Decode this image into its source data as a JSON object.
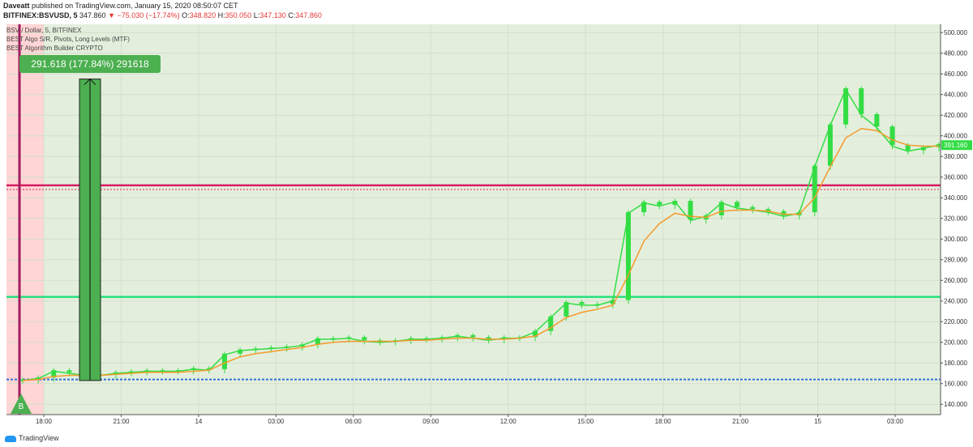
{
  "header": {
    "author": "Daveatt",
    "published_text": "published on TradingView.com, January 15, 2020 08:50:07 CET",
    "symbol": "BITFINEX:BSVUSD, 5",
    "last": "347.860",
    "change": "▼ −75.030 (−17.74%)",
    "o_label": "O:",
    "o_value": "348.820",
    "h_label": "H:",
    "h_value": "350.050",
    "l_label": "L:",
    "l_value": "347.130",
    "c_label": "C:",
    "c_value": "347.860"
  },
  "legend": {
    "line1": "BSV / Dollar, 5, BITFINEX",
    "line2": "BEST Algo S/R, Pivots, Long Levels (MTF)",
    "line3": "BEST Algorithm Builder CRYPTO"
  },
  "measure_badge": "291.618 (177.84%) 291618",
  "price_tag": "391.160",
  "buy_marker": "B",
  "footer": {
    "brand": "TradingView"
  },
  "colors": {
    "bg_green": "#e3efdc",
    "bg_red": "#ffd5d5",
    "candle_up": "#33dd44",
    "ema": "#f59a2c",
    "support": "#26e07a",
    "resistance": "#d81b60",
    "entry": "#2f6fd8",
    "measure": "#4caf50"
  },
  "chart_data": {
    "type": "line",
    "x_ticks": [
      "18:00",
      "21:00",
      "14",
      "03:00",
      "06:00",
      "09:00",
      "12:00",
      "15:00",
      "18:00",
      "21:00",
      "15",
      "03:00"
    ],
    "y_ticks": [
      "140.000",
      "160.000",
      "180.000",
      "200.000",
      "220.000",
      "240.000",
      "260.000",
      "280.000",
      "300.000",
      "320.000",
      "340.000",
      "360.000",
      "380.000",
      "400.000",
      "420.000",
      "440.000",
      "460.000",
      "480.000",
      "500.000"
    ],
    "ylim": [
      130,
      508
    ],
    "series": [
      {
        "x": [
          0,
          1,
          2,
          3,
          4,
          5,
          6,
          7,
          8,
          9,
          10,
          11,
          12,
          13,
          14,
          15,
          16,
          17,
          18,
          19,
          20,
          21,
          22,
          23,
          24,
          25,
          26,
          27,
          28,
          29,
          30,
          31,
          32,
          33,
          34,
          35,
          36,
          37,
          38,
          39,
          40,
          41,
          42,
          43,
          44,
          45,
          46,
          47,
          48,
          49,
          50,
          51,
          52,
          53,
          54,
          55,
          56,
          57,
          58,
          59
        ],
        "values": [
          163,
          165,
          172,
          170,
          168,
          168,
          170,
          171,
          172,
          172,
          172,
          174,
          173,
          188,
          192,
          193,
          194,
          195,
          197,
          203,
          203,
          204,
          201,
          200,
          201,
          203,
          203,
          204,
          206,
          204,
          202,
          204,
          204,
          210,
          224,
          238,
          236,
          236,
          240,
          325,
          335,
          332,
          336,
          318,
          322,
          335,
          330,
          328,
          326,
          322,
          325,
          370,
          410,
          445,
          420,
          408,
          390,
          385,
          388,
          391
        ]
      },
      {
        "x": [
          0,
          1,
          2,
          3,
          4,
          5,
          6,
          7,
          8,
          9,
          10,
          11,
          12,
          13,
          14,
          15,
          16,
          17,
          18,
          19,
          20,
          21,
          22,
          23,
          24,
          25,
          26,
          27,
          28,
          29,
          30,
          31,
          32,
          33,
          34,
          35,
          36,
          37,
          38,
          39,
          40,
          41,
          42,
          43,
          44,
          45,
          46,
          47,
          48,
          49,
          50,
          51,
          52,
          53,
          54,
          55,
          56,
          57,
          58,
          59
        ],
        "values": [
          163,
          164,
          167,
          168,
          168,
          168,
          169,
          170,
          171,
          171,
          171,
          172,
          173,
          180,
          186,
          189,
          191,
          193,
          195,
          198,
          200,
          201,
          201,
          201,
          201,
          202,
          202,
          203,
          204,
          204,
          203,
          203,
          204,
          206,
          214,
          224,
          229,
          232,
          236,
          265,
          298,
          315,
          325,
          322,
          321,
          327,
          328,
          328,
          327,
          324,
          324,
          340,
          370,
          398,
          407,
          405,
          396,
          391,
          390,
          390
        ]
      }
    ],
    "levels": [
      {
        "y": 352
      },
      {
        "y": 348
      },
      {
        "y": 244
      },
      {
        "y": 164
      }
    ]
  }
}
